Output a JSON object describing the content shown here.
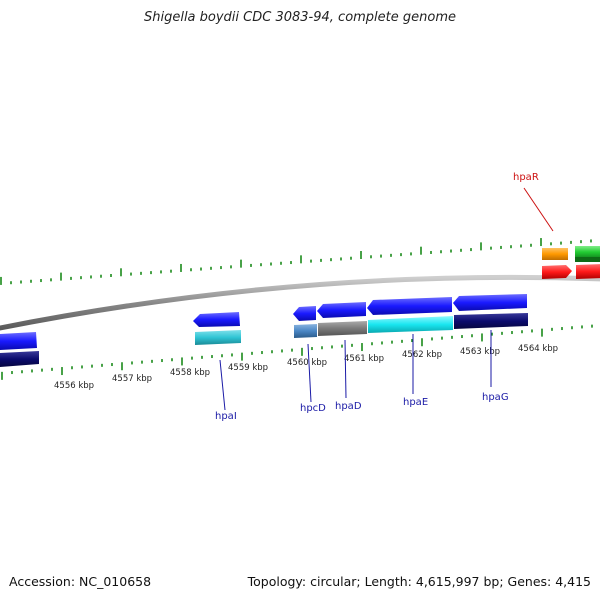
{
  "title": "Shigella boydii CDC 3083-94, complete genome",
  "ticks": [
    {
      "label": "4556 kbp"
    },
    {
      "label": "4557 kbp"
    },
    {
      "label": "4558 kbp"
    },
    {
      "label": "4559 kbp"
    },
    {
      "label": "4560 kbp"
    },
    {
      "label": "4561 kbp"
    },
    {
      "label": "4562 kbp"
    },
    {
      "label": "4563 kbp"
    },
    {
      "label": "4564 kbp"
    }
  ],
  "gene_labels": [
    {
      "name": "hpaI",
      "color": "#1a1aa6"
    },
    {
      "name": "hpcD",
      "color": "#1a1aa6"
    },
    {
      "name": "hpaD",
      "color": "#1a1aa6"
    },
    {
      "name": "hpaE",
      "color": "#1a1aa6"
    },
    {
      "name": "hpaG",
      "color": "#1a1aa6"
    },
    {
      "name": "hpaR",
      "color": "#cc1111"
    }
  ],
  "colors": {
    "gene_blue": "#1a1aff",
    "gene_dark_navy": "#0b0b6e",
    "gene_cyan": "#19e6f0",
    "gene_teal": "#2fc4d4",
    "gene_steelblue": "#4a86c4",
    "gene_gray": "#7a7a7a",
    "gene_orange": "#ff9900",
    "gene_green": "#22cc33",
    "gene_red": "#ff1a1a",
    "tick_green": "#1a8a1a",
    "backbone": "#888888"
  },
  "footer": {
    "accession": "Accession: NC_010658",
    "summary": "Topology: circular; Length: 4,615,997 bp; Genes: 4,415"
  }
}
